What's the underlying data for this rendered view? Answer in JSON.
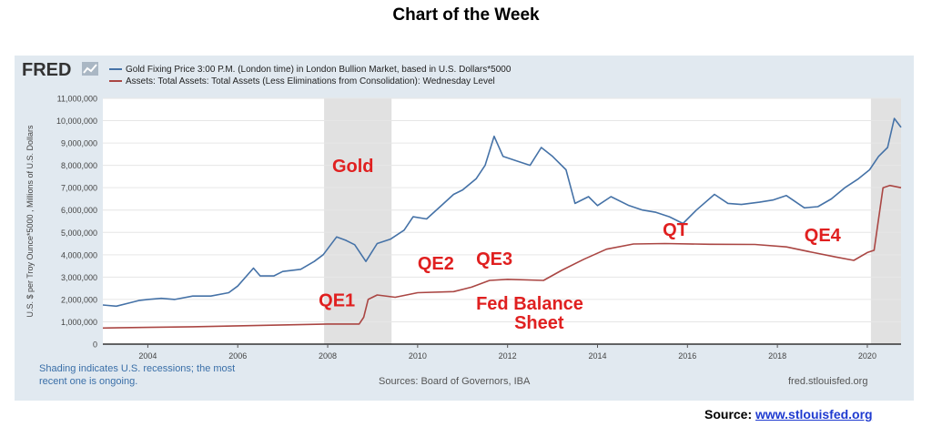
{
  "page": {
    "title": "Chart of the Week",
    "source_label": "Source:",
    "source_link": "www.stlouisfed.org"
  },
  "fred": {
    "logo": "FRED",
    "shading_note_1": "Shading indicates U.S. recessions; the most",
    "shading_note_2": "recent one is ongoing.",
    "sources": "Sources: Board of Governors, IBA",
    "site": "fred.stlouisfed.org"
  },
  "colors": {
    "gold": "#4572a7",
    "assets": "#aa4643",
    "annotation": "#e02020",
    "recession": "#e1e1e1",
    "panel": "#e1e9f0"
  },
  "chart_data": {
    "type": "line",
    "ylabel": "U.S. $ per Troy Ounce*5000 , Millions of U.S. Dollars",
    "xlim": [
      2003,
      2020.75
    ],
    "ylim": [
      0,
      11000000
    ],
    "x_ticks": [
      "2004",
      "2006",
      "2008",
      "2010",
      "2012",
      "2014",
      "2016",
      "2018",
      "2020"
    ],
    "y_ticks": [
      "0",
      "1,000,000",
      "2,000,000",
      "3,000,000",
      "4,000,000",
      "5,000,000",
      "6,000,000",
      "7,000,000",
      "8,000,000",
      "9,000,000",
      "10,000,000",
      "11,000,000"
    ],
    "recessions": [
      [
        2007.92,
        2009.42
      ],
      [
        2020.08,
        2020.75
      ]
    ],
    "grid": true,
    "legend_position": "top-left",
    "series": [
      {
        "name": "Gold Fixing Price 3:00 P.M. (London time) in London Bullion Market, based in U.S. Dollars*5000",
        "color": "#4572a7",
        "points": [
          [
            2003.0,
            1750000
          ],
          [
            2003.3,
            1700000
          ],
          [
            2003.6,
            1850000
          ],
          [
            2003.8,
            1950000
          ],
          [
            2004.0,
            2000000
          ],
          [
            2004.3,
            2050000
          ],
          [
            2004.6,
            2000000
          ],
          [
            2005.0,
            2150000
          ],
          [
            2005.4,
            2150000
          ],
          [
            2005.8,
            2300000
          ],
          [
            2006.0,
            2600000
          ],
          [
            2006.35,
            3400000
          ],
          [
            2006.5,
            3050000
          ],
          [
            2006.8,
            3050000
          ],
          [
            2007.0,
            3250000
          ],
          [
            2007.4,
            3350000
          ],
          [
            2007.7,
            3700000
          ],
          [
            2007.9,
            4000000
          ],
          [
            2008.2,
            4800000
          ],
          [
            2008.4,
            4650000
          ],
          [
            2008.6,
            4450000
          ],
          [
            2008.85,
            3700000
          ],
          [
            2009.1,
            4500000
          ],
          [
            2009.4,
            4700000
          ],
          [
            2009.7,
            5100000
          ],
          [
            2009.9,
            5700000
          ],
          [
            2010.2,
            5600000
          ],
          [
            2010.5,
            6150000
          ],
          [
            2010.8,
            6700000
          ],
          [
            2011.0,
            6900000
          ],
          [
            2011.3,
            7400000
          ],
          [
            2011.5,
            8000000
          ],
          [
            2011.7,
            9300000
          ],
          [
            2011.9,
            8400000
          ],
          [
            2012.2,
            8200000
          ],
          [
            2012.5,
            8000000
          ],
          [
            2012.75,
            8800000
          ],
          [
            2013.0,
            8400000
          ],
          [
            2013.3,
            7800000
          ],
          [
            2013.5,
            6300000
          ],
          [
            2013.8,
            6600000
          ],
          [
            2014.0,
            6200000
          ],
          [
            2014.3,
            6600000
          ],
          [
            2014.7,
            6200000
          ],
          [
            2015.0,
            6000000
          ],
          [
            2015.3,
            5900000
          ],
          [
            2015.6,
            5700000
          ],
          [
            2015.9,
            5400000
          ],
          [
            2016.2,
            6000000
          ],
          [
            2016.6,
            6700000
          ],
          [
            2016.9,
            6300000
          ],
          [
            2017.2,
            6250000
          ],
          [
            2017.6,
            6350000
          ],
          [
            2017.9,
            6450000
          ],
          [
            2018.2,
            6650000
          ],
          [
            2018.6,
            6100000
          ],
          [
            2018.9,
            6150000
          ],
          [
            2019.2,
            6500000
          ],
          [
            2019.5,
            7000000
          ],
          [
            2019.8,
            7400000
          ],
          [
            2020.05,
            7800000
          ],
          [
            2020.25,
            8400000
          ],
          [
            2020.45,
            8800000
          ],
          [
            2020.6,
            10100000
          ],
          [
            2020.75,
            9700000
          ]
        ]
      },
      {
        "name": "Assets: Total Assets: Total Assets (Less Eliminations from Consolidation): Wednesday Level",
        "color": "#aa4643",
        "points": [
          [
            2003.0,
            720000
          ],
          [
            2004.0,
            750000
          ],
          [
            2005.0,
            780000
          ],
          [
            2006.0,
            820000
          ],
          [
            2007.0,
            860000
          ],
          [
            2008.0,
            900000
          ],
          [
            2008.7,
            900000
          ],
          [
            2008.8,
            1200000
          ],
          [
            2008.9,
            2000000
          ],
          [
            2009.1,
            2200000
          ],
          [
            2009.5,
            2100000
          ],
          [
            2010.0,
            2300000
          ],
          [
            2010.8,
            2350000
          ],
          [
            2011.2,
            2550000
          ],
          [
            2011.6,
            2850000
          ],
          [
            2012.0,
            2900000
          ],
          [
            2012.8,
            2850000
          ],
          [
            2013.2,
            3300000
          ],
          [
            2013.7,
            3800000
          ],
          [
            2014.2,
            4250000
          ],
          [
            2014.8,
            4480000
          ],
          [
            2015.5,
            4500000
          ],
          [
            2016.5,
            4470000
          ],
          [
            2017.5,
            4460000
          ],
          [
            2018.2,
            4350000
          ],
          [
            2018.8,
            4100000
          ],
          [
            2019.3,
            3900000
          ],
          [
            2019.7,
            3750000
          ],
          [
            2020.0,
            4100000
          ],
          [
            2020.15,
            4200000
          ],
          [
            2020.25,
            5600000
          ],
          [
            2020.35,
            7000000
          ],
          [
            2020.5,
            7100000
          ],
          [
            2020.75,
            7000000
          ]
        ]
      }
    ],
    "annotations": [
      {
        "text": "Gold",
        "x": 2008.1,
        "y": 7700000
      },
      {
        "text": "QE1",
        "x": 2007.8,
        "y": 1700000
      },
      {
        "text": "QE2",
        "x": 2010.0,
        "y": 3350000
      },
      {
        "text": "QE3",
        "x": 2011.3,
        "y": 3550000
      },
      {
        "text": "Fed Balance",
        "x": 2011.3,
        "y": 1550000
      },
      {
        "text": "Sheet",
        "x": 2012.15,
        "y": 700000
      },
      {
        "text": "QT",
        "x": 2015.45,
        "y": 4850000
      },
      {
        "text": "QE4",
        "x": 2018.6,
        "y": 4600000
      }
    ]
  }
}
